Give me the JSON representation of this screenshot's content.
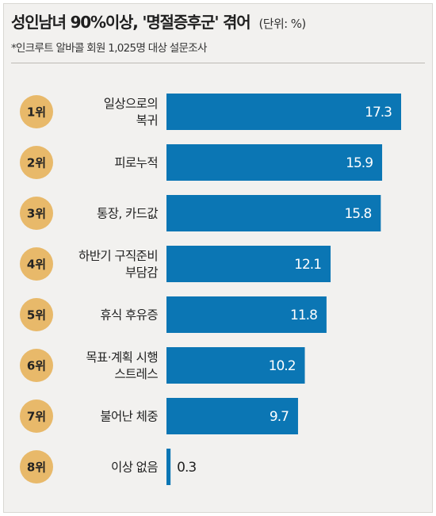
{
  "header": {
    "title": "성인남녀 90%이상, '명절증후군' 겪어",
    "unit": "(단위: %)",
    "subtitle": "*인크루트 알바콜 회원 1,025명 대상 설문조사"
  },
  "colors": {
    "bar": "#0b76b4",
    "rank_badge": "#e8b96a",
    "value_inside": "#ffffff",
    "value_outside": "#222222",
    "background": "#f2f1ef"
  },
  "chart_data": {
    "type": "bar",
    "orientation": "horizontal",
    "title": "성인남녀 90%이상, '명절증후군' 겪어",
    "unit": "%",
    "ranks": [
      "1위",
      "2위",
      "3위",
      "4위",
      "5위",
      "6위",
      "7위",
      "8위"
    ],
    "categories": [
      [
        "일상으로의",
        "복귀"
      ],
      [
        "피로누적"
      ],
      [
        "통장, 카드값"
      ],
      [
        "하반기 구직준비",
        "부담감"
      ],
      [
        "휴식 후유증"
      ],
      [
        "목표·계획 시행",
        "스트레스"
      ],
      [
        "불어난 체중"
      ],
      [
        "이상 없음"
      ]
    ],
    "values": [
      17.3,
      15.9,
      15.8,
      12.1,
      11.8,
      10.2,
      9.7,
      0.3
    ],
    "value_labels": [
      "17.3",
      "15.9",
      "15.8",
      "12.1",
      "11.8",
      "10.2",
      "9.7",
      "0.3"
    ],
    "xlim": [
      0,
      17.3
    ],
    "grid": false,
    "legend": "none"
  }
}
